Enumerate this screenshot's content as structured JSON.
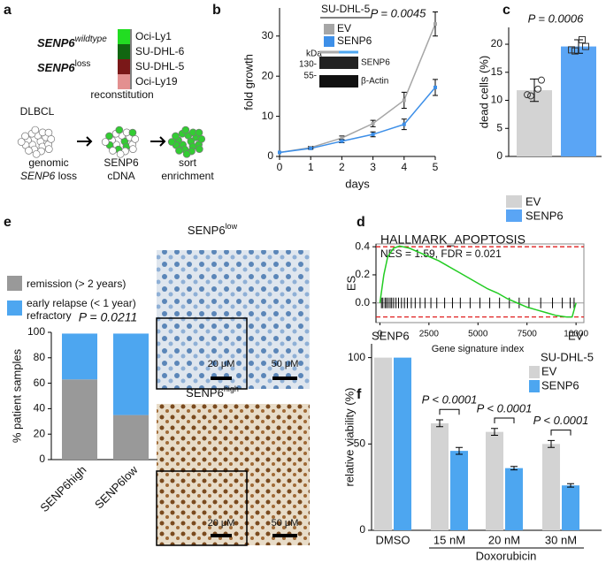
{
  "panel_labels": [
    "a",
    "b",
    "c",
    "d",
    "e",
    "f"
  ],
  "panel_a": {
    "wildtype": {
      "gene": "SENP6",
      "status": "wildtype"
    },
    "loss": {
      "gene": "SENP6",
      "status": "loss"
    },
    "cell_lines": [
      "Oci-Ly1",
      "SU-DHL-6",
      "SU-DHL-5",
      "Oci-Ly19"
    ],
    "diagram": {
      "top": [
        "DLBCL",
        "reconstitution"
      ],
      "bottom": [
        [
          "genomic",
          "SENP6",
          "loss"
        ],
        [
          "SENP6",
          "cDNA"
        ],
        [
          "sort",
          "enrichment"
        ]
      ]
    }
  },
  "images": {
    "low": {
      "gene": "SENP6",
      "level": "low"
    },
    "high": {
      "gene": "SENP6",
      "level": "high"
    },
    "scale_bars": [
      "20 μM",
      "50 μM"
    ]
  },
  "chart_data": [
    {
      "type": "line",
      "xlabel": "days",
      "ylabel": "fold growth",
      "x": [
        0,
        1,
        2,
        3,
        4,
        5
      ],
      "xlim": [
        0,
        5
      ],
      "xticks": [
        0,
        1,
        2,
        3,
        4,
        5
      ],
      "ylim": [
        0,
        37
      ],
      "yticks": [
        0,
        10,
        20,
        30
      ],
      "legend_title": "SU-DHL-5",
      "series": [
        {
          "name": "EV",
          "color": "#a6a6a6",
          "values": [
            1,
            2.2,
            4.6,
            8.2,
            14,
            33
          ],
          "errors": [
            0,
            0.3,
            0.5,
            0.8,
            2,
            3
          ]
        },
        {
          "name": "SENP6",
          "color": "#3d8fe8",
          "values": [
            1,
            2,
            3.8,
            5.5,
            8,
            17.2
          ],
          "errors": [
            0,
            0.2,
            0.4,
            0.6,
            1.3,
            2
          ]
        }
      ],
      "annotations": [
        "P = 0.0045"
      ],
      "blot": {
        "unit": "kDa",
        "markers": [
          "130-",
          "55-"
        ],
        "bands": [
          "SENP6",
          "β-Actin"
        ]
      }
    },
    {
      "type": "bar",
      "ylabel": "dead cells (%)",
      "categories": [
        "EV",
        "SENP6"
      ],
      "values": [
        11.8,
        19.6
      ],
      "errors": [
        2,
        1.2
      ],
      "colors": [
        "#d3d3d3",
        "#5aa5f5"
      ],
      "points": [
        [
          11,
          12,
          10.8,
          13.6
        ],
        [
          19,
          20.8,
          18.8,
          19.6
        ]
      ],
      "ylim": [
        0,
        23
      ],
      "yticks": [
        0,
        5,
        10,
        15,
        20
      ],
      "annotations": [
        "P = 0.0006"
      ]
    },
    {
      "type": "gsea",
      "title": "HALLMARK_APOPTOSIS",
      "subtitle": "NES = 1.59, FDR = 0.021",
      "xlabel": "Gene signature index",
      "ylabel": "ES",
      "color": "#22cc22",
      "x": [
        0,
        200,
        400,
        700,
        1000,
        1500,
        2000,
        2500,
        3000,
        3500,
        4000,
        4500,
        5000,
        5500,
        6000,
        6500,
        7000,
        7500,
        8000,
        8500,
        9000,
        9500,
        9800,
        10000
      ],
      "values": [
        0,
        0.2,
        0.33,
        0.39,
        0.405,
        0.39,
        0.36,
        0.33,
        0.3,
        0.26,
        0.22,
        0.18,
        0.14,
        0.1,
        0.07,
        0.03,
        0,
        -0.03,
        -0.05,
        -0.07,
        -0.09,
        -0.1,
        -0.1,
        0
      ],
      "hits": [
        80,
        150,
        260,
        330,
        420,
        520,
        600,
        700,
        820,
        950,
        1100,
        1250,
        1400,
        1600,
        1800,
        2050,
        2300,
        2600,
        2900,
        3300,
        3700,
        4100,
        4600,
        5100,
        5600,
        6100,
        6600,
        7100,
        7600,
        8200,
        8800,
        9300,
        9700,
        9900
      ],
      "hlines": [
        0.4,
        -0.1
      ],
      "xlim": [
        -200,
        10400
      ],
      "xticks": [
        0,
        2500,
        5000,
        7500,
        10000
      ],
      "ylim": [
        -0.14,
        0.42
      ],
      "yticks": [
        {
          "value": 0,
          "label": "0.0"
        },
        0.2,
        0.4
      ],
      "left_label": "SENP6",
      "right_label": "EV"
    },
    {
      "type": "stacked-bar",
      "ylabel": "% patient samples",
      "categories": [
        "SENP6high",
        "SENP6low"
      ],
      "series": [
        {
          "name": "remission (> 2 years)",
          "color": "#999999",
          "values": [
            63,
            35
          ]
        },
        {
          "name": "early relapse (< 1 year) refractory",
          "color": "#4da6f0",
          "values": [
            36,
            64
          ]
        }
      ],
      "ylim": [
        0,
        100
      ],
      "yticks": [
        0,
        20,
        40,
        60,
        80,
        100
      ],
      "annotations": [
        "P  = 0.0211"
      ]
    },
    {
      "type": "grouped-bar",
      "ylabel": "relative viability (%)",
      "categories": [
        "DMSO",
        "15 nM",
        "20 nM",
        "30 nM"
      ],
      "group_label": "Doxorubicin",
      "legend_title": "SU-DHL-5",
      "series": [
        {
          "name": "EV",
          "color": "#d3d3d3",
          "values": [
            100,
            62,
            57,
            50
          ],
          "errors": [
            0,
            2,
            2,
            2
          ]
        },
        {
          "name": "SENP6",
          "color": "#4da6f0",
          "values": [
            100,
            46,
            36,
            26
          ],
          "errors": [
            0,
            2,
            1,
            1
          ]
        }
      ],
      "ylim": [
        0,
        108
      ],
      "yticks": [
        0,
        50,
        100
      ],
      "annotations": [
        "P < 0.0001",
        "P < 0.0001",
        "P < 0.0001"
      ]
    }
  ]
}
